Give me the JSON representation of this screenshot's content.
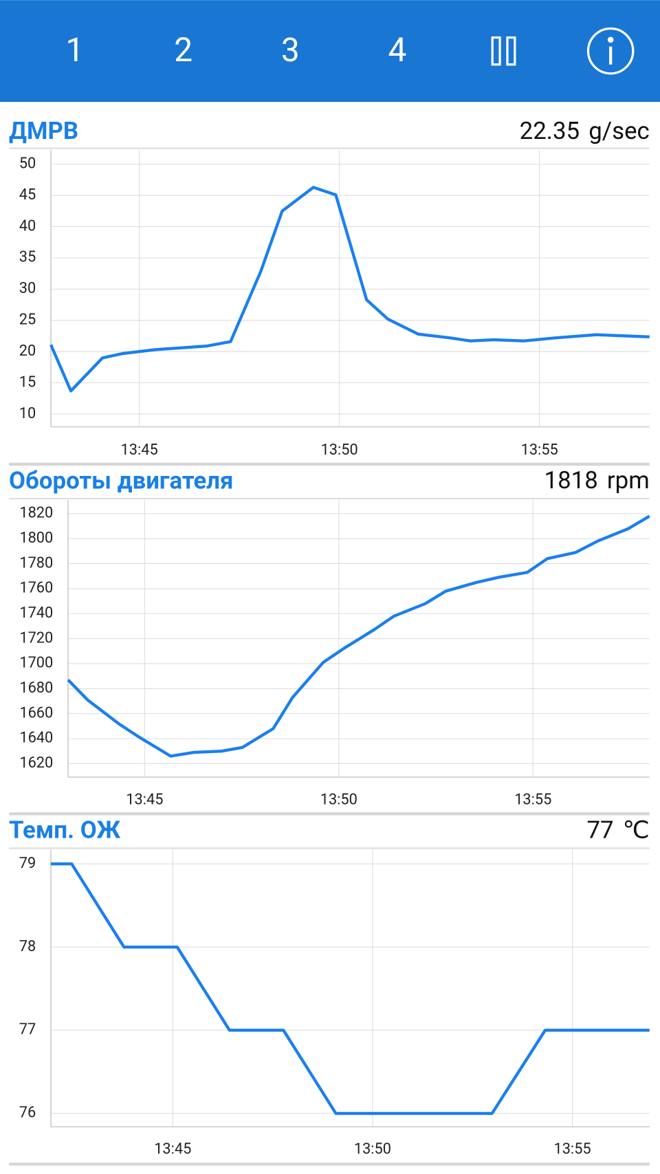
{
  "header": {
    "tabs": [
      "1",
      "2",
      "3",
      "4"
    ]
  },
  "chart_data": [
    {
      "type": "line",
      "title": "ДМРВ",
      "readout": {
        "value": 22.35,
        "unit": "g/sec"
      },
      "x": [
        42.79,
        43.29,
        44.08,
        44.6,
        45.39,
        46.7,
        47.28,
        48.04,
        48.57,
        49.35,
        49.91,
        50.68,
        51.21,
        51.97,
        52.76,
        53.28,
        53.86,
        54.61,
        55.4,
        56.42,
        57.75
      ],
      "series": [
        {
          "color": "#1a7ff0",
          "values": [
            21.1,
            13.7,
            19.0,
            19.7,
            20.3,
            20.9,
            21.6,
            32.9,
            42.5,
            46.3,
            45.1,
            28.3,
            25.2,
            22.8,
            22.2,
            21.7,
            21.9,
            21.7,
            22.2,
            22.7,
            22.35
          ]
        }
      ],
      "xlim": [
        42.79,
        57.75
      ],
      "xticks": [
        {
          "value": 45,
          "label": "13:45"
        },
        {
          "value": 50,
          "label": "13:50"
        },
        {
          "value": 55,
          "label": "13:55"
        }
      ],
      "ylim": [
        7.96,
        52.3
      ],
      "yticks": [
        10,
        15,
        20,
        25,
        30,
        35,
        40,
        45,
        50
      ],
      "grid": true
    },
    {
      "type": "line",
      "title": "Обороты двигателя",
      "readout": {
        "value": 1818,
        "unit": "rpm"
      },
      "x": [
        43.03,
        43.53,
        44.33,
        44.87,
        45.67,
        46.27,
        46.98,
        47.52,
        48.31,
        48.81,
        49.6,
        50.17,
        50.9,
        51.42,
        52.23,
        52.75,
        53.54,
        54.1,
        54.85,
        55.37,
        56.1,
        56.66,
        57.45,
        58.0
      ],
      "series": [
        {
          "color": "#1a7ff0",
          "values": [
            1687,
            1671,
            1652,
            1641,
            1626,
            1629,
            1630,
            1633,
            1648,
            1673,
            1701,
            1713,
            1727,
            1738,
            1748,
            1758,
            1765,
            1769,
            1773,
            1784,
            1789,
            1798,
            1808,
            1818
          ]
        }
      ],
      "xlim": [
        43.03,
        58.0
      ],
      "xticks": [
        {
          "value": 45,
          "label": "13:45"
        },
        {
          "value": 50,
          "label": "13:50"
        },
        {
          "value": 55,
          "label": "13:55"
        }
      ],
      "ylim": [
        1609.2,
        1830.8
      ],
      "yticks": [
        1620,
        1640,
        1660,
        1680,
        1700,
        1720,
        1740,
        1760,
        1780,
        1800,
        1820
      ],
      "grid": true
    },
    {
      "type": "line",
      "title": "Темп. ОЖ",
      "readout": {
        "value": 77,
        "unit": "℃"
      },
      "x": [
        41.95,
        42.47,
        43.78,
        45.11,
        46.42,
        47.77,
        49.08,
        52.99,
        54.32,
        56.93
      ],
      "series": [
        {
          "color": "#1a7ff0",
          "values": [
            79,
            79,
            78,
            78,
            77,
            77,
            76,
            76,
            77,
            77
          ]
        }
      ],
      "xlim": [
        41.95,
        56.93
      ],
      "xticks": [
        {
          "value": 45,
          "label": "13:45"
        },
        {
          "value": 50,
          "label": "13:50"
        },
        {
          "value": 55,
          "label": "13:55"
        }
      ],
      "ylim": [
        75.84,
        79.17
      ],
      "yticks": [
        76,
        77,
        78,
        79
      ],
      "grid": true
    }
  ]
}
